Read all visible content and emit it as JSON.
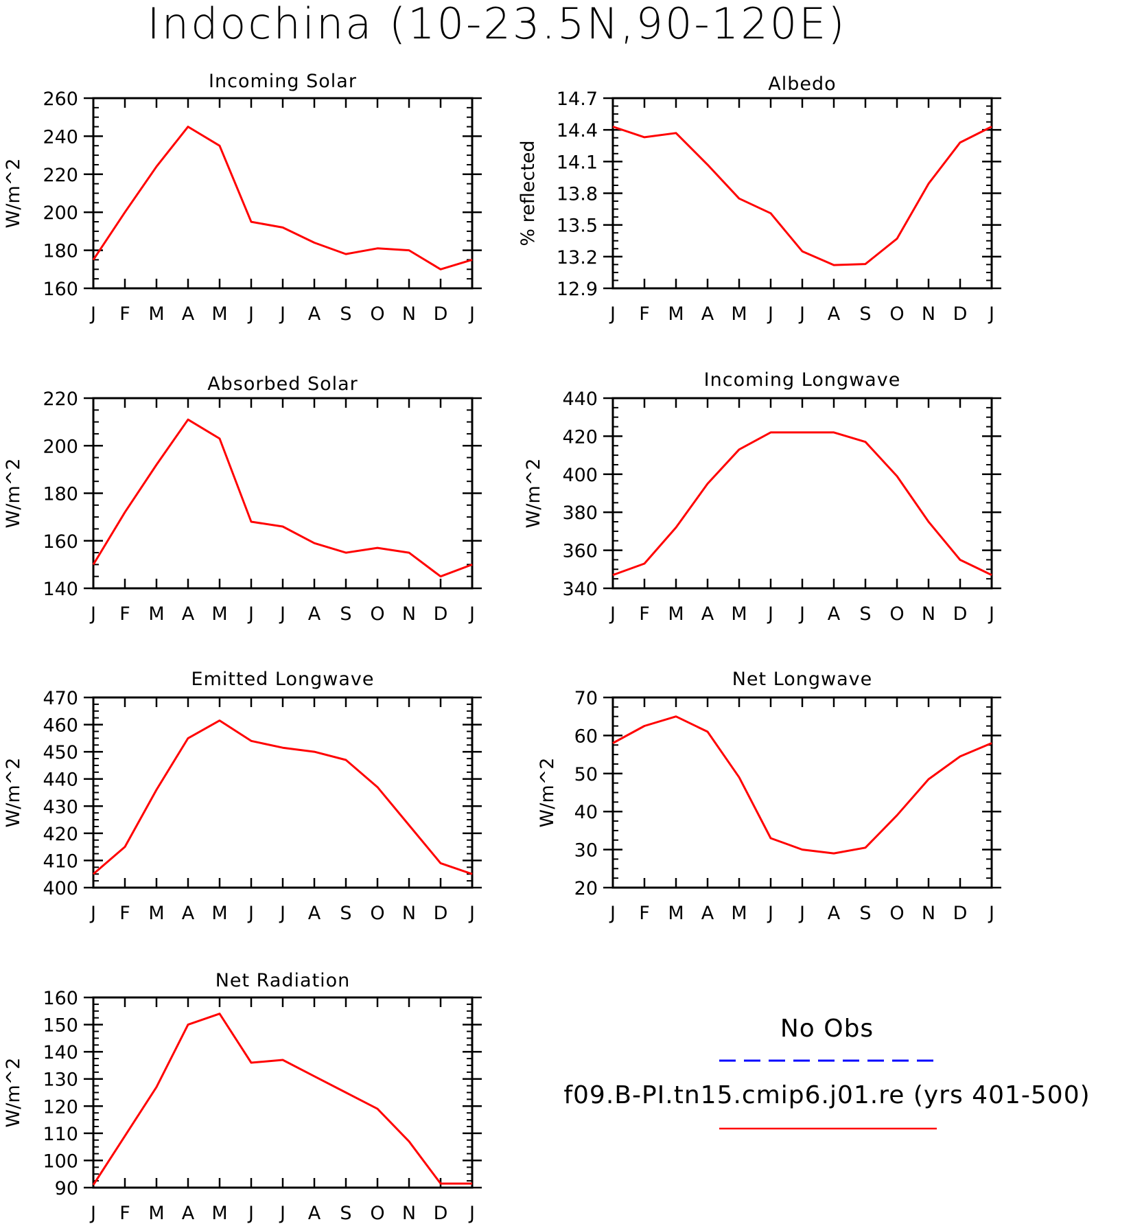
{
  "title": "Indochina (10-23.5N,90-120E)",
  "months": [
    "J",
    "F",
    "M",
    "A",
    "M",
    "J",
    "J",
    "A",
    "S",
    "O",
    "N",
    "D",
    "J"
  ],
  "colors": {
    "model": "#ff0000",
    "obs": "#0000ff",
    "axes": "#000000"
  },
  "legend": {
    "obs_label": "No Obs",
    "model_label": "f09.B-PI.tn15.cmip6.j01.re (yrs 401-500)"
  },
  "chart_data": [
    {
      "type": "line",
      "title": "Incoming Solar",
      "ylabel": "W/m^2",
      "ylim": [
        160,
        260
      ],
      "yticks": [
        "160",
        "180",
        "200",
        "220",
        "240",
        "260"
      ],
      "categories": [
        "J",
        "F",
        "M",
        "A",
        "M",
        "J",
        "J",
        "A",
        "S",
        "O",
        "N",
        "D",
        "J"
      ],
      "series": [
        {
          "values": [
            175,
            200,
            224,
            245,
            235,
            195,
            192,
            184,
            178,
            181,
            180,
            170,
            175
          ]
        }
      ]
    },
    {
      "type": "line",
      "title": "Albedo",
      "ylabel": "% reflected",
      "ylim": [
        12.9,
        14.7
      ],
      "yticks": [
        "12.9",
        "13.2",
        "13.5",
        "13.8",
        "14.1",
        "14.4",
        "14.7"
      ],
      "categories": [
        "J",
        "F",
        "M",
        "A",
        "M",
        "J",
        "J",
        "A",
        "S",
        "O",
        "N",
        "D",
        "J"
      ],
      "series": [
        {
          "values": [
            14.43,
            14.33,
            14.37,
            14.07,
            13.75,
            13.61,
            13.25,
            13.12,
            13.13,
            13.37,
            13.89,
            14.28,
            14.43
          ]
        }
      ]
    },
    {
      "type": "line",
      "title": "Absorbed Solar",
      "ylabel": "W/m^2",
      "ylim": [
        140,
        220
      ],
      "yticks": [
        "140",
        "160",
        "180",
        "200",
        "220"
      ],
      "categories": [
        "J",
        "F",
        "M",
        "A",
        "M",
        "J",
        "J",
        "A",
        "S",
        "O",
        "N",
        "D",
        "J"
      ],
      "series": [
        {
          "values": [
            150,
            172,
            192,
            211,
            203,
            168,
            166,
            159,
            155,
            157,
            155,
            145,
            150
          ]
        }
      ]
    },
    {
      "type": "line",
      "title": "Incoming Longwave",
      "ylabel": "W/m^2",
      "ylim": [
        340,
        440
      ],
      "yticks": [
        "340",
        "360",
        "380",
        "400",
        "420",
        "440"
      ],
      "categories": [
        "J",
        "F",
        "M",
        "A",
        "M",
        "J",
        "J",
        "A",
        "S",
        "O",
        "N",
        "D",
        "J"
      ],
      "series": [
        {
          "values": [
            347,
            353,
            372,
            395,
            413,
            422,
            422,
            422,
            417,
            399,
            375,
            355,
            347
          ]
        }
      ]
    },
    {
      "type": "line",
      "title": "Emitted Longwave",
      "ylabel": "W/m^2",
      "ylim": [
        400,
        470
      ],
      "yticks": [
        "400",
        "410",
        "420",
        "430",
        "440",
        "450",
        "460",
        "470"
      ],
      "categories": [
        "J",
        "F",
        "M",
        "A",
        "M",
        "J",
        "J",
        "A",
        "S",
        "O",
        "N",
        "D",
        "J"
      ],
      "series": [
        {
          "values": [
            405,
            415,
            436,
            455,
            461.5,
            454,
            451.5,
            450,
            447,
            437,
            423,
            409,
            405
          ]
        }
      ]
    },
    {
      "type": "line",
      "title": "Net Longwave",
      "ylabel": "W/m^2",
      "ylim": [
        20,
        70
      ],
      "yticks": [
        "20",
        "30",
        "40",
        "50",
        "60",
        "70"
      ],
      "categories": [
        "J",
        "F",
        "M",
        "A",
        "M",
        "J",
        "J",
        "A",
        "S",
        "O",
        "N",
        "D",
        "J"
      ],
      "series": [
        {
          "values": [
            58,
            62.5,
            65,
            61,
            49,
            33,
            30,
            29,
            30.5,
            39,
            48.5,
            54.5,
            58
          ]
        }
      ]
    },
    {
      "type": "line",
      "title": "Net Radiation",
      "ylabel": "W/m^2",
      "ylim": [
        90,
        160
      ],
      "yticks": [
        "90",
        "100",
        "110",
        "120",
        "130",
        "140",
        "150",
        "160"
      ],
      "categories": [
        "J",
        "F",
        "M",
        "A",
        "M",
        "J",
        "J",
        "A",
        "S",
        "O",
        "N",
        "D",
        "J"
      ],
      "series": [
        {
          "values": [
            91,
            109,
            127,
            150,
            154,
            136,
            137,
            131,
            125,
            119,
            107,
            91.5,
            91.5
          ]
        }
      ]
    }
  ]
}
